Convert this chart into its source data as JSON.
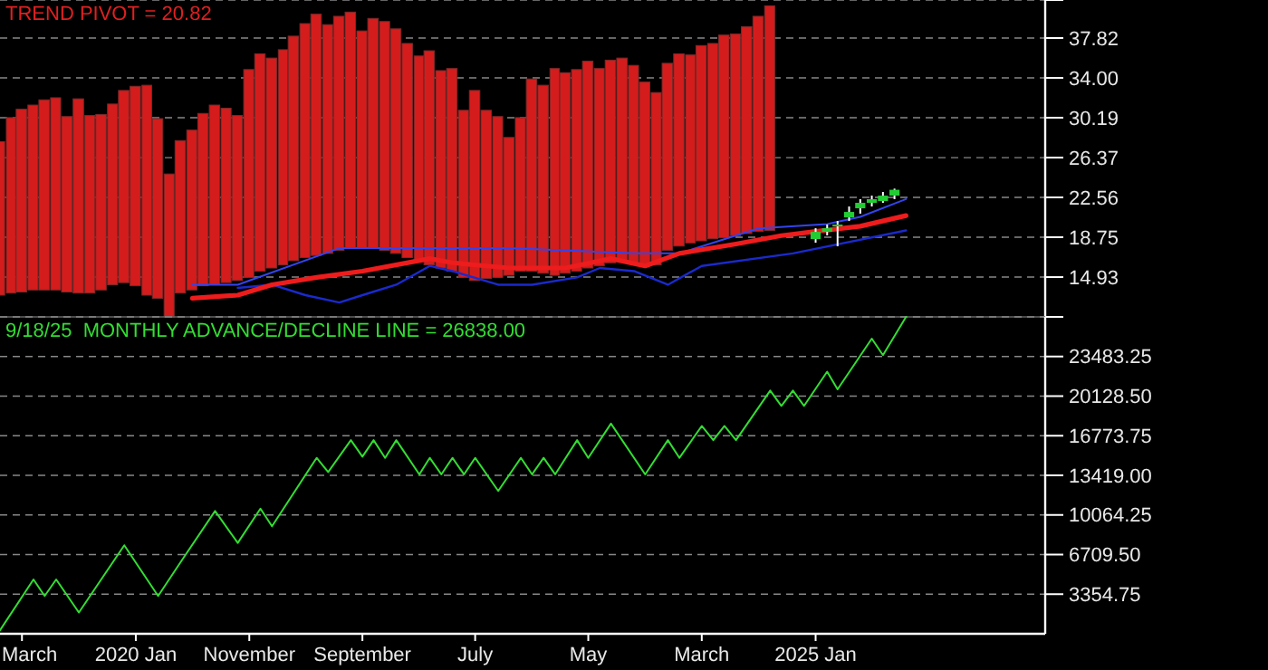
{
  "chart_data": [
    {
      "type": "bar",
      "title": "TREND PIVOT = 20.82",
      "xlim": [
        "2019-01-01",
        "2026-09-10"
      ],
      "ylim": [
        11.12,
        41.46
      ],
      "yticks": [
        {
          "value": 41.46,
          "label": null
        },
        37.82,
        {
          "value": 34,
          "label": "34.00"
        },
        30.19,
        26.37,
        22.56,
        18.75,
        14.93
      ],
      "grid": "y",
      "tick_labels": "y",
      "series": [
        {
          "color": "#d41c1c",
          "x": [
            "2019-01",
            "2019-02",
            "2019-03",
            "2019-04",
            "2019-05",
            "2019-06",
            "2019-07",
            "2019-08",
            "2019-09",
            "2019-10",
            "2019-11",
            "2019-12",
            "2020-01",
            "2020-02",
            "2020-03",
            "2020-04",
            "2020-05",
            "2020-06",
            "2020-07",
            "2020-08",
            "2020-09",
            "2020-10",
            "2020-11",
            "2020-12",
            "2021-01",
            "2021-02",
            "2021-03",
            "2021-04",
            "2021-05",
            "2021-06",
            "2021-07",
            "2021-08",
            "2021-09",
            "2021-10",
            "2021-11",
            "2021-12",
            "2022-01",
            "2022-02",
            "2022-03",
            "2022-04",
            "2022-05",
            "2022-06",
            "2022-07",
            "2022-08",
            "2022-09",
            "2022-10",
            "2022-11",
            "2022-12",
            "2023-01",
            "2023-02",
            "2023-03",
            "2023-04",
            "2023-05",
            "2023-06",
            "2023-07",
            "2023-08",
            "2023-09",
            "2023-10",
            "2023-11",
            "2023-12",
            "2024-01",
            "2024-02",
            "2024-03",
            "2024-04",
            "2024-05",
            "2024-06",
            "2024-07",
            "2024-08",
            "2024-09"
          ],
          "base": [
            13.2,
            13.4,
            13.5,
            13.7,
            13.7,
            13.7,
            13.5,
            13.4,
            13.4,
            13.7,
            14.2,
            14.4,
            14.1,
            13.2,
            12.9,
            11.1,
            13.4,
            13.7,
            14.1,
            14.2,
            14.4,
            14.6,
            14.9,
            15.5,
            15.8,
            16.1,
            16.5,
            16.8,
            17.0,
            17.2,
            17.5,
            17.7,
            17.7,
            17.7,
            17.5,
            17.2,
            16.8,
            16.5,
            16.1,
            15.8,
            15.5,
            14.9,
            14.6,
            14.8,
            14.9,
            15.1,
            15.5,
            15.5,
            15.3,
            15.1,
            15.3,
            15.5,
            15.8,
            16.0,
            16.3,
            16.5,
            16.3,
            16.1,
            16.1,
            17.5,
            17.9,
            18.2,
            18.4,
            18.6,
            18.7,
            18.9,
            19.1,
            19.3,
            19.4
          ],
          "values": [
            14.7,
            16.8,
            17.5,
            17.7,
            18.2,
            18.4,
            16.8,
            18.6,
            17.0,
            16.8,
            17.3,
            18.4,
            19.1,
            20.1,
            17.2,
            13.7,
            14.6,
            15.3,
            16.5,
            17.2,
            16.7,
            15.8,
            19.9,
            20.8,
            20.1,
            20.6,
            21.5,
            22.4,
            23.1,
            21.9,
            22.4,
            22.6,
            20.8,
            22.0,
            21.9,
            21.5,
            20.5,
            19.6,
            20.5,
            18.9,
            19.4,
            16.0,
            18.2,
            16.1,
            15.4,
            13.2,
            14.7,
            18.4,
            18.0,
            19.8,
            19.2,
            19.3,
            19.8,
            18.9,
            19.4,
            19.4,
            18.9,
            17.5,
            16.5,
            17.9,
            18.4,
            18.0,
            18.7,
            18.7,
            19.4,
            19.3,
            19.8,
            20.6,
            21.5
          ]
        },
        {
          "type": "line",
          "color": "#3344ee",
          "x": [
            "2020-06",
            "2020-10",
            "2021-07",
            "2022-10",
            "2023-09",
            "2024-01",
            "2024-08",
            "2025-02",
            "2025-05",
            "2025-09"
          ],
          "values": [
            14.2,
            14.2,
            17.7,
            17.7,
            17.2,
            17.2,
            19.6,
            20.0,
            20.7,
            22.4
          ]
        },
        {
          "type": "line",
          "color": "#1a2acc",
          "x": [
            "2020-10",
            "2021-01",
            "2021-04",
            "2021-07",
            "2021-09",
            "2021-12",
            "2022-03",
            "2022-05",
            "2022-09",
            "2022-12",
            "2023-04",
            "2023-06",
            "2023-09",
            "2023-12",
            "2024-03",
            "2024-11",
            "2025-09"
          ],
          "values": [
            13.9,
            14.2,
            13.2,
            12.5,
            13.2,
            14.2,
            16.0,
            15.5,
            14.2,
            14.2,
            14.9,
            15.8,
            15.5,
            14.2,
            16.0,
            17.2,
            19.4
          ]
        },
        {
          "type": "line",
          "color": "#ee1c1c",
          "x": [
            "2020-06",
            "2020-10",
            "2021-01",
            "2021-05",
            "2021-09",
            "2022-03",
            "2022-05",
            "2022-10",
            "2023-03",
            "2023-07",
            "2023-10",
            "2024-01",
            "2024-06",
            "2024-10",
            "2025-01",
            "2025-05",
            "2025-09"
          ],
          "values": [
            12.9,
            13.2,
            14.2,
            14.9,
            15.5,
            16.7,
            16.3,
            15.8,
            15.8,
            16.7,
            16.0,
            17.2,
            18.1,
            18.9,
            19.3,
            19.8,
            20.82
          ]
        },
        {
          "type": "candlestick",
          "color": "#22cc33",
          "x": [
            "2025-01",
            "2025-02",
            "2025-03",
            "2025-04",
            "2025-05",
            "2025-06",
            "2025-07",
            "2025-08"
          ],
          "ohlc": [
            [
              18.57,
              19.61,
              18.22,
              19.26
            ],
            [
              19.26,
              19.96,
              18.92,
              19.61
            ],
            [
              19.79,
              20.3,
              17.88,
              19.96
            ],
            [
              20.65,
              21.69,
              20.3,
              21.17
            ],
            [
              21.52,
              22.39,
              21.0,
              22.04
            ],
            [
              22.04,
              22.73,
              21.69,
              22.39
            ],
            [
              22.21,
              23.08,
              22.04,
              22.73
            ],
            [
              22.73,
              23.4,
              22.39,
              23.29
            ]
          ]
        }
      ]
    },
    {
      "type": "line",
      "title": "9/18/25  MONTHLY ADVANCE/DECLINE LINE = 26838.00",
      "xlim": [
        "2019-01-01",
        "2026-09-10"
      ],
      "xticks": [
        {
          "value": "2019-03",
          "label": "March"
        },
        {
          "value": "2020-01",
          "label": "2020 Jan"
        },
        {
          "value": "2020-11",
          "label": "November"
        },
        {
          "value": "2021-09",
          "label": "September"
        },
        {
          "value": "2022-07",
          "label": "July"
        },
        {
          "value": "2023-05",
          "label": "May"
        },
        {
          "value": "2024-03",
          "label": "March"
        },
        {
          "value": "2025-01",
          "label": "2025 Jan"
        }
      ],
      "ylim": [
        0,
        26838
      ],
      "yticks": [
        {
          "value": 26838,
          "label": null
        },
        23483.25,
        {
          "value": 20128.5,
          "label": "20128.50"
        },
        16773.75,
        {
          "value": 13419,
          "label": "13419.00"
        },
        10064.25,
        {
          "value": 6709.5,
          "label": "6709.50"
        },
        3354.75
      ],
      "grid": "y",
      "series": [
        {
          "color": "#33dd33",
          "x": [
            "2019-01",
            "2019-04",
            "2019-05",
            "2019-06",
            "2019-08",
            "2019-12",
            "2020-03",
            "2020-05",
            "2020-08",
            "2020-10",
            "2020-12",
            "2021-01",
            "2021-05",
            "2021-06",
            "2021-08",
            "2021-09",
            "2021-10",
            "2021-11",
            "2021-12",
            "2022-02",
            "2022-03",
            "2022-04",
            "2022-05",
            "2022-06",
            "2022-07",
            "2022-09",
            "2022-11",
            "2022-12",
            "2023-01",
            "2023-02",
            "2023-04",
            "2023-05",
            "2023-07",
            "2023-10",
            "2023-12",
            "2024-01",
            "2024-03",
            "2024-04",
            "2024-05",
            "2024-06",
            "2024-09",
            "2024-10",
            "2024-11",
            "2024-12",
            "2025-02",
            "2025-03",
            "2025-06",
            "2025-07",
            "2025-09"
          ],
          "values": [
            300,
            4600,
            3200,
            4600,
            1800,
            7500,
            3200,
            6100,
            10400,
            7700,
            10600,
            9100,
            14900,
            13700,
            16400,
            15000,
            16400,
            14900,
            16400,
            13500,
            14900,
            13500,
            14900,
            13500,
            14900,
            12100,
            14900,
            13500,
            14900,
            13500,
            16400,
            14900,
            17800,
            13500,
            16400,
            14900,
            17600,
            16400,
            17600,
            16400,
            20600,
            19300,
            20600,
            19300,
            22200,
            20700,
            25000,
            23600,
            26838
          ]
        }
      ]
    }
  ]
}
